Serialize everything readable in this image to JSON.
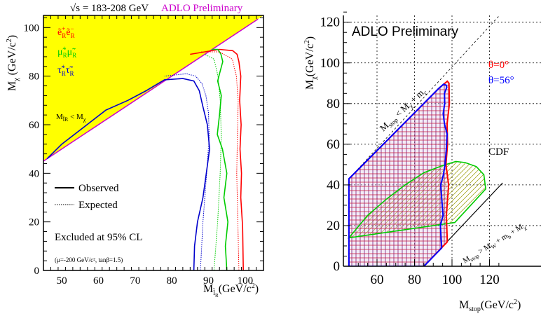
{
  "chart_data": [
    {
      "type": "line",
      "title": "√s = 183-208 GeV",
      "subtitle": "ADLO Preliminary",
      "xlabel": "M",
      "xlabel_sub": "l̃",
      "xlabel_subsub": "R",
      "xlabel_unit": "(GeV/c",
      "xlabel_unit_sup": "2",
      "xlabel_unit_close": ")",
      "ylabel": "M",
      "ylabel_sub": "χ",
      "ylabel_unit": " (GeV/c",
      "ylabel_unit_sup": "2",
      "ylabel_unit_close": ")",
      "xlim": [
        45,
        105
      ],
      "ylim": [
        0,
        105
      ],
      "x_ticks": [
        "50",
        "60",
        "70",
        "80",
        "90",
        "100"
      ],
      "y_ticks": [
        "0",
        "20",
        "40",
        "60",
        "80",
        "100"
      ],
      "kinematic_label": "M",
      "kinematic_label_sub": "l̃R",
      "kinematic_label_rest": " < M",
      "kinematic_label_sub2": "χ",
      "legend": {
        "observed": "Observed",
        "expected": "Expected"
      },
      "excluded_label": "Excluded at 95% CL",
      "params_label": "(μ=-200 GeV/c², tanβ=1.5)",
      "channel_labels": [
        {
          "text": "ẽ⁺ʀẽ⁻ʀ",
          "main": "ẽ",
          "sub": "R",
          "color": "#ff0000"
        },
        {
          "text": "μ̃⁺ʀμ̃⁻ʀ",
          "main": "μ̃",
          "sub": "R",
          "color": "#00cc00"
        },
        {
          "text": "τ̃⁺ʀτ̃⁻ʀ",
          "main": "τ̃",
          "sub": "R",
          "color": "#0000cc"
        }
      ],
      "channel_text": [
        "ẽ",
        "μ̃",
        "τ̃"
      ],
      "colors": {
        "selectron": "#ff0000",
        "smuon": "#00cc00",
        "stau": "#0000cc",
        "forbidden": "#ffff00",
        "diagonal": "#cc00cc"
      },
      "series": [
        {
          "name": "ẽR observed",
          "x": [
            99.5,
            99.3,
            98.8,
            99.0,
            98.6,
            98.9,
            98.5,
            98.8,
            98.3,
            97.8,
            96.6,
            93,
            85
          ],
          "y": [
            0,
            18,
            30,
            40,
            50,
            60,
            70,
            80,
            86,
            89,
            90.5,
            91,
            89
          ]
        },
        {
          "name": "μ̃R observed",
          "x": [
            95.0,
            94.6,
            95.3,
            94.2,
            95.0,
            93.8,
            92.4,
            93.0,
            93.5,
            92.5,
            93.2,
            93.9,
            93.4,
            92.6,
            91
          ],
          "y": [
            0,
            10,
            20,
            30,
            40,
            50,
            56,
            64,
            72,
            78,
            82,
            86,
            89,
            91,
            91
          ]
        },
        {
          "name": "τ̃R observed",
          "x": [
            86.0,
            86.2,
            87.0,
            88.5,
            89.4,
            90.3,
            89.7,
            88.4,
            87.5,
            86,
            83,
            78,
            73,
            68,
            62,
            56,
            50,
            46
          ],
          "y": [
            0,
            10,
            20,
            30,
            40,
            50,
            60,
            68,
            74,
            78,
            79,
            78.5,
            74,
            70,
            66,
            59,
            52,
            46
          ]
        },
        {
          "name": "ẽR expected",
          "x": [
            98.3,
            98.0,
            97.7,
            97.9,
            98.1,
            97.6,
            96.5,
            93,
            88
          ],
          "y": [
            0,
            20,
            40,
            55,
            70,
            80,
            87,
            90,
            90
          ]
        },
        {
          "name": "μ̃R expected",
          "x": [
            91.5,
            92.5,
            93.2,
            93.5,
            93.2,
            92.6,
            91.5,
            89
          ],
          "y": [
            0,
            20,
            40,
            55,
            70,
            80,
            87,
            89
          ]
        },
        {
          "name": "τ̃R expected",
          "x": [
            87.8,
            88.5,
            89.5,
            90.2,
            90.0,
            89.3,
            88.2,
            86.5,
            84,
            78
          ],
          "y": [
            0,
            20,
            40,
            55,
            65,
            72,
            77,
            80,
            81,
            80
          ]
        }
      ]
    },
    {
      "type": "area",
      "title": "ADLO Preliminary",
      "xlabel": "M",
      "xlabel_sub": "stop",
      "xlabel_unit": "(GeV/c",
      "xlabel_unit_sup": "2",
      "xlabel_unit_close": ")",
      "ylabel": "M",
      "ylabel_sub": "χ",
      "ylabel_unit": "(GeV/c",
      "ylabel_unit_sup": "2",
      "ylabel_unit_close": ")",
      "xlim": [
        45,
        127
      ],
      "ylim": [
        0,
        127
      ],
      "x_ticks": [
        "60",
        "80",
        "100",
        "120"
      ],
      "y_ticks": [
        "0",
        "20",
        "40",
        "60",
        "80",
        "100",
        "120"
      ],
      "grid": true,
      "theta0_label": "θ=0°",
      "theta56_label": "θ=56°",
      "cdf_label": "CDF",
      "upper_line_label": {
        "m": "M",
        "m_sub": "stop",
        "lt": " < M",
        "chi_sub": "χ",
        "plus": " + m",
        "c_sub": "c"
      },
      "lower_line_label": {
        "m": "M",
        "m_sub": "stop",
        "gt": " > M",
        "w_sub": "W",
        "plus1": " + m",
        "b_sub": "b",
        "plus2": " + M",
        "chi_sub": "χ"
      },
      "colors": {
        "theta0": "#ff0000",
        "theta56": "#0000ff",
        "cdf": "#00cc00",
        "cdf_hatch": "#999900"
      },
      "series": [
        {
          "name": "θ=0°",
          "x": [
            45,
            45,
            85,
            97.5,
            97.0,
            98.2,
            96.8,
            97.6,
            97.4,
            98.6,
            98.4,
            97.5,
            93,
            45
          ],
          "y": [
            43,
            0,
            0,
            12,
            25,
            40,
            50,
            60,
            70,
            80,
            90,
            91,
            87.5,
            43
          ]
        },
        {
          "name": "θ=56°",
          "x": [
            45,
            45,
            85,
            94.5,
            93.8,
            95.2,
            94.6,
            94.0,
            95.4,
            96.3,
            97.0,
            97.4,
            96.0,
            95.3,
            96.1,
            96.0,
            97.2,
            97.0,
            95.5,
            93,
            45
          ],
          "y": [
            43,
            0,
            0,
            9,
            20,
            25,
            32,
            40,
            45,
            50,
            58,
            65,
            70,
            75,
            80,
            85,
            88,
            89,
            89.5,
            87.5,
            43
          ]
        },
        {
          "name": "CDF",
          "x": [
            45,
            55,
            65,
            75,
            85,
            95,
            102,
            107,
            113,
            117,
            118,
            113,
            101.5,
            45
          ],
          "y": [
            14,
            25,
            33,
            40,
            46,
            49.5,
            51.5,
            51,
            49,
            45,
            38,
            33,
            21.5,
            14
          ]
        }
      ]
    }
  ]
}
